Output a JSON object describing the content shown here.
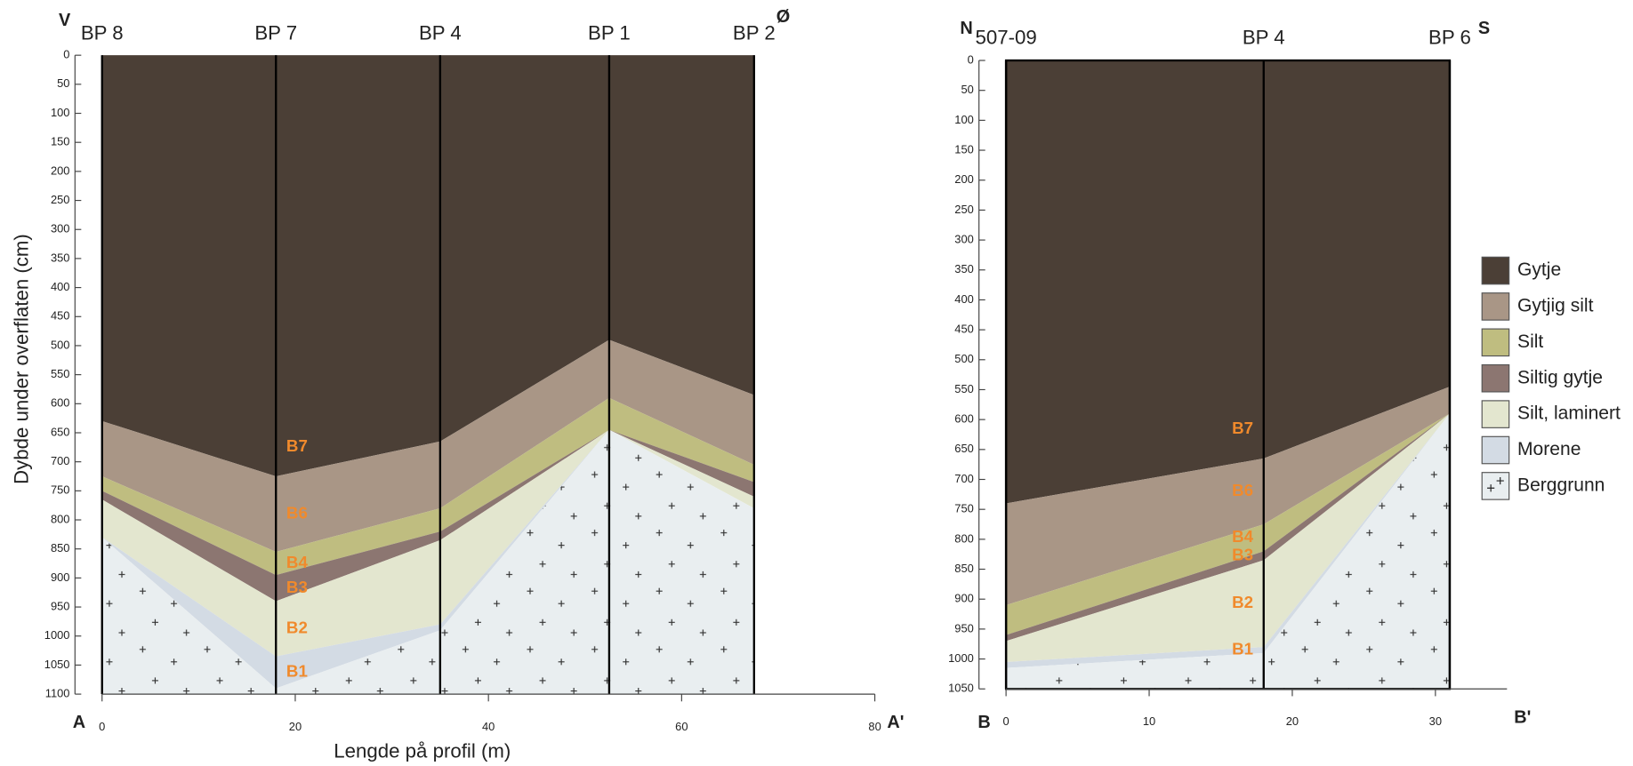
{
  "legend": [
    {
      "name": "Gytje",
      "color": "#4b3f36"
    },
    {
      "name": "Gytjig silt",
      "color": "#a99686"
    },
    {
      "name": "Silt",
      "color": "#bfbd80"
    },
    {
      "name": "Siltig gytje",
      "color": "#8c7671"
    },
    {
      "name": "Silt, laminert",
      "color": "#e3e6cf"
    },
    {
      "name": "Morene",
      "color": "#d3dbe4"
    },
    {
      "name": "Berggrunn",
      "color": "#e9eef0"
    }
  ],
  "chart_data": [
    {
      "type": "section",
      "corner_labels": [
        "V",
        "Ø",
        "A",
        "A'"
      ],
      "x_label": "Lengde på profil (m)",
      "y_label": "Dybde under overflaten (cm)",
      "x": [
        0,
        18,
        35,
        52.5,
        67.5
      ],
      "x_names": [
        "BP 8",
        "BP 7",
        "BP 4",
        "BP 1",
        "BP 2"
      ],
      "xlim": [
        0,
        80
      ],
      "xticks": [
        0,
        20,
        40,
        60,
        80
      ],
      "ylim": [
        0,
        1100
      ],
      "yticks": [
        0,
        50,
        100,
        150,
        200,
        250,
        300,
        350,
        400,
        450,
        500,
        550,
        600,
        650,
        700,
        750,
        800,
        850,
        900,
        950,
        1000,
        1050,
        1100
      ],
      "series": [
        {
          "label": "B7",
          "values": [
            630,
            725,
            665,
            490,
            585
          ]
        },
        {
          "label": "B6",
          "values": [
            725,
            855,
            780,
            590,
            705
          ]
        },
        {
          "label": "B4",
          "values": [
            750,
            895,
            820,
            645,
            735
          ]
        },
        {
          "label": "B3",
          "values": [
            765,
            940,
            835,
            645,
            760
          ]
        },
        {
          "label": "B2",
          "values": [
            830,
            1035,
            980,
            645,
            780
          ]
        },
        {
          "label": "B1",
          "values": [
            830,
            1090,
            990,
            645,
            780
          ]
        }
      ]
    },
    {
      "type": "section",
      "corner_labels": [
        "N",
        "S",
        "B",
        "B'"
      ],
      "x": [
        0,
        18,
        31
      ],
      "x_names": [
        "507-09",
        "BP 4",
        "BP 6"
      ],
      "xlim": [
        0,
        35
      ],
      "xticks": [
        0,
        10,
        20,
        30
      ],
      "ylim": [
        0,
        1050
      ],
      "yticks": [
        0,
        50,
        100,
        150,
        200,
        250,
        300,
        350,
        400,
        450,
        500,
        550,
        600,
        650,
        700,
        750,
        800,
        850,
        900,
        950,
        1000,
        1050
      ],
      "series": [
        {
          "label": "B7",
          "values": [
            740,
            665,
            545
          ]
        },
        {
          "label": "B6",
          "values": [
            910,
            775,
            590
          ]
        },
        {
          "label": "B4",
          "values": [
            960,
            820,
            590
          ]
        },
        {
          "label": "B3",
          "values": [
            970,
            835,
            590
          ]
        },
        {
          "label": "B2",
          "values": [
            1005,
            980,
            590
          ]
        },
        {
          "label": "B1",
          "values": [
            1015,
            990,
            590
          ]
        }
      ]
    }
  ]
}
